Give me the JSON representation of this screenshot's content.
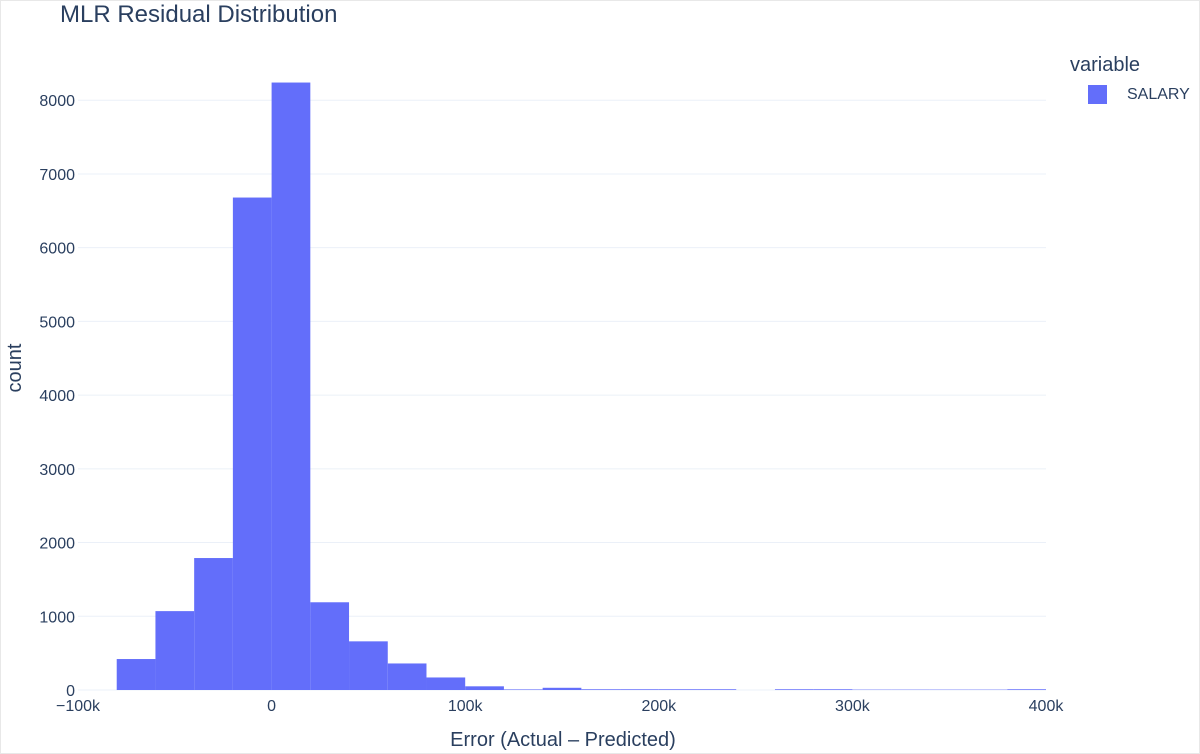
{
  "chart_data": {
    "type": "bar",
    "title": "MLR Residual Distribution",
    "xlabel": "Error (Actual – Predicted)",
    "ylabel": "count",
    "legend_title": "variable",
    "legend_position": "top-right",
    "grid": true,
    "xlim": [
      -100000,
      400000
    ],
    "ylim": [
      0,
      8600
    ],
    "x_ticks": [
      {
        "value": -100000,
        "label": "−100k"
      },
      {
        "value": 0,
        "label": "0"
      },
      {
        "value": 100000,
        "label": "100k"
      },
      {
        "value": 200000,
        "label": "200k"
      },
      {
        "value": 300000,
        "label": "300k"
      },
      {
        "value": 400000,
        "label": "400k"
      }
    ],
    "y_ticks": [
      0,
      1000,
      2000,
      3000,
      4000,
      5000,
      6000,
      7000,
      8000
    ],
    "series": [
      {
        "name": "SALARY",
        "color": "#636efa",
        "bins": [
          {
            "x0": -80000,
            "x1": -60000,
            "count": 420
          },
          {
            "x0": -60000,
            "x1": -40000,
            "count": 1070
          },
          {
            "x0": -40000,
            "x1": -20000,
            "count": 1790
          },
          {
            "x0": -20000,
            "x1": 0,
            "count": 6680
          },
          {
            "x0": 0,
            "x1": 20000,
            "count": 8240
          },
          {
            "x0": 20000,
            "x1": 40000,
            "count": 1190
          },
          {
            "x0": 40000,
            "x1": 60000,
            "count": 660
          },
          {
            "x0": 60000,
            "x1": 80000,
            "count": 360
          },
          {
            "x0": 80000,
            "x1": 100000,
            "count": 170
          },
          {
            "x0": 100000,
            "x1": 120000,
            "count": 50
          },
          {
            "x0": 120000,
            "x1": 140000,
            "count": 8
          },
          {
            "x0": 140000,
            "x1": 160000,
            "count": 30
          },
          {
            "x0": 160000,
            "x1": 180000,
            "count": 10
          },
          {
            "x0": 180000,
            "x1": 200000,
            "count": 10
          },
          {
            "x0": 200000,
            "x1": 220000,
            "count": 10
          },
          {
            "x0": 220000,
            "x1": 240000,
            "count": 10
          },
          {
            "x0": 240000,
            "x1": 260000,
            "count": 0
          },
          {
            "x0": 260000,
            "x1": 280000,
            "count": 10
          },
          {
            "x0": 280000,
            "x1": 300000,
            "count": 10
          },
          {
            "x0": 300000,
            "x1": 320000,
            "count": 5
          },
          {
            "x0": 320000,
            "x1": 340000,
            "count": 5
          },
          {
            "x0": 340000,
            "x1": 360000,
            "count": 5
          },
          {
            "x0": 360000,
            "x1": 380000,
            "count": 5
          },
          {
            "x0": 380000,
            "x1": 400000,
            "count": 10
          }
        ]
      }
    ]
  }
}
